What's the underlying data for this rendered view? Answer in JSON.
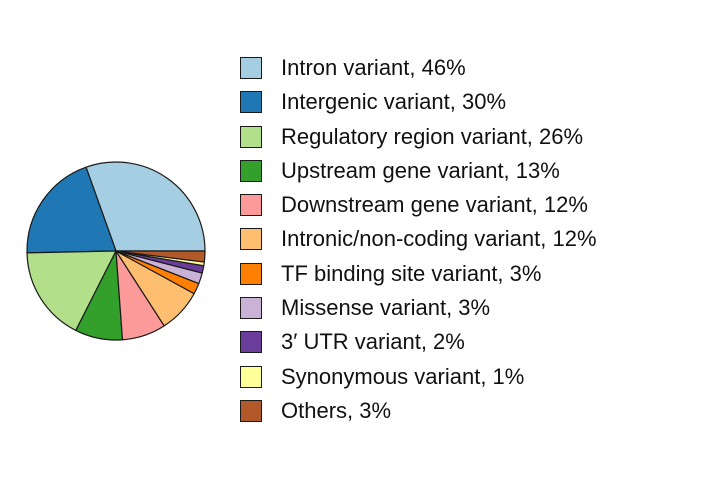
{
  "chart_data": {
    "type": "pie",
    "title": "",
    "legend_position": "right",
    "series": [
      {
        "slices": [
          {
            "label": "Intron variant, 46%",
            "value": 46,
            "color": "#a6cee3"
          },
          {
            "label": "Intergenic variant, 30%",
            "value": 30,
            "color": "#1f78b4"
          },
          {
            "label": "Regulatory region variant, 26%",
            "value": 26,
            "color": "#b2df8a"
          },
          {
            "label": "Upstream gene variant, 13%",
            "value": 13,
            "color": "#33a02c"
          },
          {
            "label": "Downstream gene variant, 12%",
            "value": 12,
            "color": "#fb9a99"
          },
          {
            "label": "Intronic/non-coding variant, 12%",
            "value": 12,
            "color": "#fdbf6f"
          },
          {
            "label": "TF binding site variant, 3%",
            "value": 3,
            "color": "#ff7f00"
          },
          {
            "label": "Missense variant, 3%",
            "value": 3,
            "color": "#cab2d6"
          },
          {
            "label": "3′ UTR variant, 2%",
            "value": 2,
            "color": "#6a3d9a"
          },
          {
            "label": "Synonymous variant, 1%",
            "value": 1,
            "color": "#ffff99"
          },
          {
            "label": "Others, 3%",
            "value": 3,
            "color": "#b15928"
          }
        ]
      }
    ],
    "outline_color": "#1a1a1a"
  }
}
